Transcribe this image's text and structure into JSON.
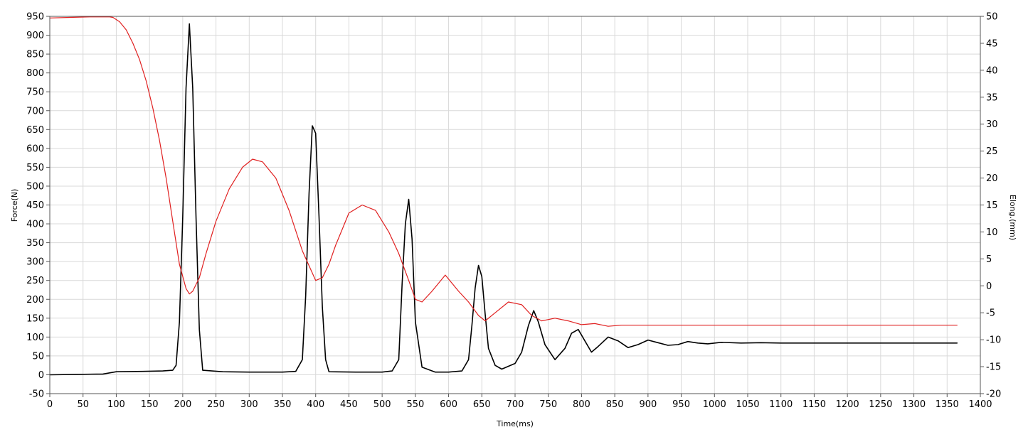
{
  "chart_data": {
    "type": "line",
    "title": "",
    "xlabel": "Time(ms)",
    "ylabel": "Force(N)",
    "y2label": "Elong.(mm)",
    "grid": true,
    "legend": "none",
    "xlim": [
      0,
      1400
    ],
    "ylim": [
      -50,
      950
    ],
    "y2lim": [
      -20,
      50
    ],
    "x_ticks": [
      0,
      50,
      100,
      150,
      200,
      250,
      300,
      350,
      400,
      450,
      500,
      550,
      600,
      650,
      700,
      750,
      800,
      850,
      900,
      950,
      1000,
      1050,
      1100,
      1150,
      1200,
      1250,
      1300,
      1350,
      1400
    ],
    "y_ticks": [
      -50,
      0,
      50,
      100,
      150,
      200,
      250,
      300,
      350,
      400,
      450,
      500,
      550,
      600,
      650,
      700,
      750,
      800,
      850,
      900,
      950
    ],
    "y2_ticks": [
      -20,
      -15,
      -10,
      -5,
      0,
      5,
      10,
      15,
      20,
      25,
      30,
      35,
      40,
      45,
      50
    ],
    "series": [
      {
        "axis": "left",
        "color": "#000000",
        "x": [
          0,
          40,
          80,
          100,
          140,
          170,
          185,
          190,
          195,
          200,
          205,
          210,
          215,
          220,
          225,
          230,
          260,
          300,
          350,
          370,
          380,
          385,
          390,
          395,
          400,
          405,
          410,
          415,
          420,
          460,
          500,
          515,
          525,
          530,
          535,
          540,
          545,
          550,
          560,
          580,
          600,
          620,
          630,
          635,
          640,
          645,
          650,
          655,
          660,
          670,
          680,
          700,
          710,
          720,
          728,
          735,
          745,
          760,
          775,
          785,
          795,
          805,
          815,
          825,
          840,
          855,
          870,
          885,
          900,
          915,
          930,
          945,
          960,
          975,
          990,
          1010,
          1040,
          1070,
          1100,
          1200,
          1300,
          1365
        ],
        "y": [
          0,
          1,
          2,
          8,
          9,
          10,
          12,
          25,
          140,
          420,
          760,
          930,
          760,
          420,
          120,
          12,
          8,
          7,
          7,
          9,
          40,
          210,
          480,
          660,
          640,
          420,
          180,
          40,
          8,
          7,
          7,
          10,
          40,
          240,
          400,
          465,
          360,
          140,
          20,
          7,
          7,
          10,
          40,
          130,
          230,
          290,
          260,
          160,
          70,
          25,
          15,
          30,
          60,
          130,
          170,
          140,
          80,
          40,
          70,
          110,
          120,
          90,
          60,
          75,
          100,
          90,
          72,
          80,
          92,
          85,
          78,
          80,
          88,
          84,
          82,
          86,
          84,
          85,
          84,
          84,
          84,
          84
        ]
      },
      {
        "axis": "right",
        "color": "#e02020",
        "x": [
          0,
          30,
          60,
          90,
          95,
          105,
          115,
          125,
          135,
          145,
          155,
          165,
          175,
          185,
          195,
          205,
          210,
          215,
          225,
          235,
          250,
          270,
          290,
          305,
          320,
          340,
          360,
          380,
          400,
          410,
          420,
          430,
          440,
          450,
          470,
          490,
          510,
          525,
          540,
          550,
          560,
          575,
          595,
          615,
          630,
          645,
          655,
          670,
          690,
          710,
          725,
          740,
          760,
          780,
          800,
          820,
          840,
          860,
          880,
          900,
          1000,
          1100,
          1200,
          1300,
          1365
        ],
        "y": [
          49.7,
          49.8,
          49.9,
          49.9,
          49.8,
          49,
          47.5,
          45,
          42,
          38,
          33,
          27,
          20,
          12,
          4,
          -0.5,
          -1.5,
          -1,
          1.5,
          6,
          12,
          18,
          22,
          23.5,
          23,
          20,
          14,
          6.5,
          1,
          1.5,
          4,
          7.5,
          10.5,
          13.5,
          15,
          14,
          10,
          6,
          1,
          -2.5,
          -3,
          -1,
          2,
          -1,
          -3,
          -5.5,
          -6.5,
          -5,
          -3,
          -3.5,
          -5.5,
          -6.5,
          -6,
          -6.5,
          -7.2,
          -7,
          -7.5,
          -7.3,
          -7.3,
          -7.3,
          -7.3,
          -7.3,
          -7.3,
          -7.3,
          -7.3
        ]
      }
    ]
  }
}
